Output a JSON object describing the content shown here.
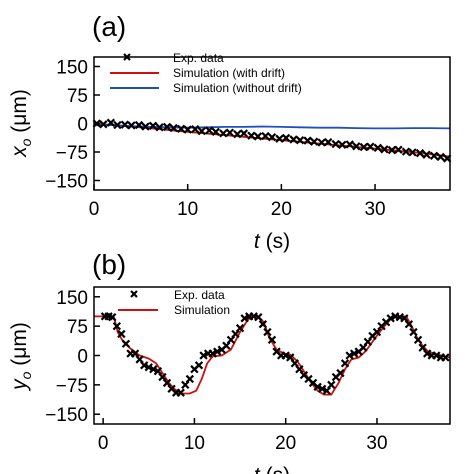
{
  "chart_data": [
    {
      "type": "line",
      "panel_label": "(a)",
      "xlabel_var": "t",
      "xlabel_unit": " (s)",
      "ylabel_var": "x",
      "ylabel_sub": "o",
      "ylabel_unit": " (μm)",
      "xlim": [
        0,
        38
      ],
      "ylim": [
        -175,
        175
      ],
      "xticks": [
        0,
        10,
        20,
        30
      ],
      "xtick_labels": [
        "0",
        "10",
        "20",
        "30"
      ],
      "yticks": [
        150,
        75,
        0,
        -75,
        -150
      ],
      "ytick_labels": [
        "150",
        "75",
        "0",
        "−75",
        "−150"
      ],
      "grid": false,
      "legend_position": "top-center",
      "series": [
        {
          "name": "Exp. data",
          "style": "x-markers",
          "color": "#000000",
          "points": [
            [
              0.3,
              0
            ],
            [
              1.0,
              -2
            ],
            [
              1.8,
              2
            ],
            [
              2.5,
              -4
            ],
            [
              3.3,
              -3
            ],
            [
              4.0,
              -5
            ],
            [
              4.8,
              -4
            ],
            [
              5.5,
              -8
            ],
            [
              6.3,
              -6
            ],
            [
              7.0,
              -10
            ],
            [
              7.8,
              -9
            ],
            [
              8.5,
              -12
            ],
            [
              9.3,
              -14
            ],
            [
              10.0,
              -16
            ],
            [
              10.8,
              -15
            ],
            [
              11.5,
              -20
            ],
            [
              12.3,
              -18
            ],
            [
              13.0,
              -22
            ],
            [
              13.8,
              -26
            ],
            [
              14.5,
              -24
            ],
            [
              15.3,
              -28
            ],
            [
              16.0,
              -26
            ],
            [
              16.8,
              -32
            ],
            [
              17.5,
              -34
            ],
            [
              18.3,
              -33
            ],
            [
              19.0,
              -36
            ],
            [
              19.8,
              -40
            ],
            [
              20.5,
              -38
            ],
            [
              21.3,
              -42
            ],
            [
              22.0,
              -44
            ],
            [
              22.8,
              -45
            ],
            [
              23.5,
              -48
            ],
            [
              24.3,
              -50
            ],
            [
              25.0,
              -49
            ],
            [
              25.8,
              -54
            ],
            [
              26.5,
              -56
            ],
            [
              27.3,
              -55
            ],
            [
              28.0,
              -60
            ],
            [
              28.8,
              -62
            ],
            [
              29.5,
              -61
            ],
            [
              30.3,
              -64
            ],
            [
              31.0,
              -68
            ],
            [
              31.8,
              -70
            ],
            [
              32.5,
              -69
            ],
            [
              33.3,
              -74
            ],
            [
              34.0,
              -76
            ],
            [
              34.8,
              -78
            ],
            [
              35.5,
              -82
            ],
            [
              36.3,
              -85
            ],
            [
              37.0,
              -88
            ],
            [
              37.7,
              -92
            ]
          ]
        },
        {
          "name": "Simulation (with drift)",
          "style": "line",
          "color": "#cc1111",
          "points": [
            [
              0,
              0
            ],
            [
              5,
              -10
            ],
            [
              10,
              -22
            ],
            [
              15,
              -33
            ],
            [
              20,
              -44
            ],
            [
              25,
              -55
            ],
            [
              30,
              -66
            ],
            [
              35,
              -78
            ],
            [
              38,
              -87
            ]
          ]
        },
        {
          "name": "Simulation (without drift)",
          "style": "line",
          "color": "#1f4fbf",
          "points": [
            [
              0,
              -5
            ],
            [
              2,
              -4
            ],
            [
              4,
              -7
            ],
            [
              6,
              -9
            ],
            [
              8,
              -10
            ],
            [
              10,
              -11
            ],
            [
              12,
              -10
            ],
            [
              14,
              -9
            ],
            [
              16,
              -9
            ],
            [
              18,
              -8
            ],
            [
              20,
              -9
            ],
            [
              22,
              -10
            ],
            [
              24,
              -11
            ],
            [
              26,
              -11
            ],
            [
              28,
              -12
            ],
            [
              30,
              -13
            ],
            [
              32,
              -13
            ],
            [
              34,
              -12
            ],
            [
              36,
              -12
            ],
            [
              38,
              -13
            ]
          ]
        }
      ]
    },
    {
      "type": "line",
      "panel_label": "(b)",
      "xlabel_var": "t",
      "xlabel_unit": " (s)",
      "ylabel_var": "y",
      "ylabel_sub": "o",
      "ylabel_unit": " (μm)",
      "xlim": [
        -1,
        38
      ],
      "ylim": [
        -175,
        175
      ],
      "xticks": [
        0,
        10,
        20,
        30
      ],
      "xtick_labels": [
        "0",
        "10",
        "20",
        "30"
      ],
      "yticks": [
        150,
        75,
        0,
        -75,
        -150
      ],
      "ytick_labels": [
        "150",
        "75",
        "0",
        "−75",
        "−150"
      ],
      "grid": false,
      "legend_position": "top-left",
      "series": [
        {
          "name": "Exp. data",
          "style": "x-markers",
          "color": "#000000",
          "points": [
            [
              0.2,
              100
            ],
            [
              0.6,
              100
            ],
            [
              1.0,
              98
            ],
            [
              1.5,
              75
            ],
            [
              2.0,
              55
            ],
            [
              2.5,
              30
            ],
            [
              3.0,
              5
            ],
            [
              3.5,
              5
            ],
            [
              4.0,
              -10
            ],
            [
              4.5,
              -25
            ],
            [
              5.0,
              -30
            ],
            [
              5.5,
              -35
            ],
            [
              6.0,
              -40
            ],
            [
              6.5,
              -55
            ],
            [
              7.0,
              -70
            ],
            [
              7.5,
              -85
            ],
            [
              8.0,
              -95
            ],
            [
              8.5,
              -95
            ],
            [
              9.0,
              -75
            ],
            [
              9.5,
              -60
            ],
            [
              10.0,
              -35
            ],
            [
              10.5,
              -25
            ],
            [
              11.0,
              0
            ],
            [
              11.5,
              5
            ],
            [
              12.0,
              5
            ],
            [
              12.5,
              10
            ],
            [
              13.0,
              15
            ],
            [
              13.5,
              25
            ],
            [
              14.0,
              40
            ],
            [
              14.5,
              55
            ],
            [
              15.0,
              70
            ],
            [
              15.5,
              95
            ],
            [
              16.0,
              100
            ],
            [
              16.5,
              100
            ],
            [
              17.0,
              98
            ],
            [
              17.5,
              80
            ],
            [
              18.0,
              60
            ],
            [
              18.5,
              40
            ],
            [
              19.0,
              10
            ],
            [
              19.5,
              0
            ],
            [
              20.0,
              0
            ],
            [
              20.5,
              -5
            ],
            [
              21.0,
              -20
            ],
            [
              21.5,
              -35
            ],
            [
              22.0,
              -50
            ],
            [
              22.5,
              -60
            ],
            [
              23.0,
              -70
            ],
            [
              23.5,
              -80
            ],
            [
              24.0,
              -85
            ],
            [
              24.5,
              -90
            ],
            [
              25.0,
              -75
            ],
            [
              25.5,
              -55
            ],
            [
              26.0,
              -45
            ],
            [
              26.5,
              -20
            ],
            [
              27.0,
              0
            ],
            [
              27.5,
              5
            ],
            [
              28.0,
              10
            ],
            [
              28.5,
              20
            ],
            [
              29.0,
              35
            ],
            [
              29.5,
              50
            ],
            [
              30.0,
              60
            ],
            [
              30.5,
              75
            ],
            [
              31.0,
              85
            ],
            [
              31.5,
              95
            ],
            [
              32.0,
              100
            ],
            [
              32.5,
              98
            ],
            [
              33.0,
              95
            ],
            [
              33.5,
              80
            ],
            [
              34.0,
              60
            ],
            [
              34.5,
              40
            ],
            [
              35.0,
              20
            ],
            [
              35.5,
              5
            ],
            [
              36.0,
              0
            ],
            [
              36.5,
              0
            ],
            [
              37.0,
              -5
            ],
            [
              37.5,
              -5
            ]
          ]
        },
        {
          "name": "Simulation",
          "style": "line",
          "color": "#cc1111",
          "points": [
            [
              -1,
              100
            ],
            [
              0.5,
              100
            ],
            [
              1.2,
              97
            ],
            [
              1.6,
              60
            ],
            [
              2.2,
              35
            ],
            [
              3.0,
              18
            ],
            [
              4.0,
              0
            ],
            [
              5.0,
              -8
            ],
            [
              5.8,
              -20
            ],
            [
              6.5,
              -45
            ],
            [
              7.2,
              -70
            ],
            [
              7.8,
              -85
            ],
            [
              8.5,
              -97
            ],
            [
              9.5,
              -97
            ],
            [
              10.2,
              -90
            ],
            [
              10.8,
              -60
            ],
            [
              11.4,
              -20
            ],
            [
              12.0,
              -2
            ],
            [
              13.0,
              0
            ],
            [
              14.0,
              15
            ],
            [
              15.0,
              60
            ],
            [
              15.8,
              90
            ],
            [
              16.3,
              100
            ],
            [
              17.0,
              100
            ],
            [
              17.6,
              85
            ],
            [
              18.2,
              45
            ],
            [
              19.0,
              15
            ],
            [
              19.8,
              5
            ],
            [
              20.5,
              2
            ],
            [
              21.3,
              -15
            ],
            [
              22.0,
              -40
            ],
            [
              22.8,
              -70
            ],
            [
              23.5,
              -90
            ],
            [
              24.2,
              -100
            ],
            [
              25.0,
              -100
            ],
            [
              25.8,
              -70
            ],
            [
              26.5,
              -35
            ],
            [
              27.2,
              -10
            ],
            [
              28.0,
              -5
            ],
            [
              28.8,
              12
            ],
            [
              29.5,
              35
            ],
            [
              30.3,
              60
            ],
            [
              31.0,
              80
            ],
            [
              31.6,
              95
            ],
            [
              32.5,
              100
            ],
            [
              33.2,
              100
            ],
            [
              33.8,
              75
            ],
            [
              34.4,
              45
            ],
            [
              35.0,
              25
            ],
            [
              35.6,
              10
            ],
            [
              36.3,
              5
            ],
            [
              37.0,
              0
            ],
            [
              38.0,
              -5
            ]
          ]
        }
      ]
    }
  ]
}
